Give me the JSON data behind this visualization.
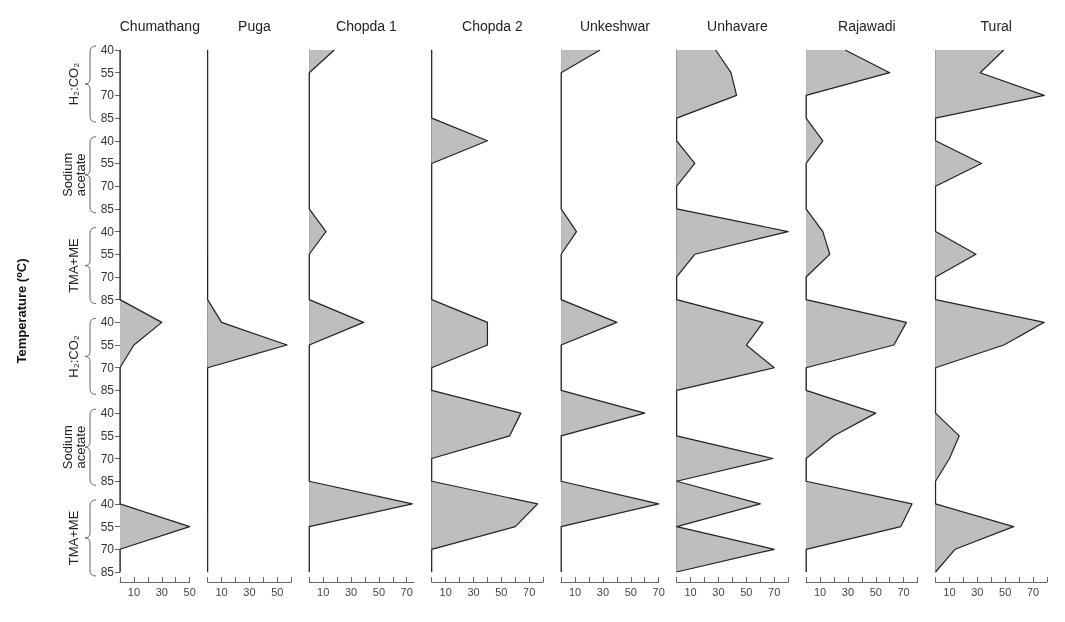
{
  "chart_data": [
    {
      "type": "area",
      "orientation": "horizontal",
      "title": "Chumathang",
      "ylabel": "Temperature (⁰C)",
      "annotations": [
        "H₂:CO₂",
        "Sodium acetate",
        "TMA+ME",
        "H₂:CO₂",
        "Sodium acetate",
        "TMA+ME"
      ],
      "categories": [
        "40",
        "55",
        "70",
        "85",
        "40",
        "55",
        "70",
        "85",
        "40",
        "55",
        "70",
        "85",
        "40",
        "55",
        "70",
        "85",
        "40",
        "55",
        "70",
        "85",
        "40",
        "55",
        "70",
        "85"
      ],
      "color": "#bebebe",
      "xlim": [
        0,
        50
      ],
      "xticks": [
        {
          "value": 0,
          "label": null
        },
        10,
        {
          "value": 20,
          "label": null
        },
        30,
        {
          "value": 40,
          "label": null
        },
        50
      ],
      "values": [
        0,
        0,
        0,
        0,
        0,
        0,
        0,
        0,
        0,
        0,
        0,
        0,
        30,
        10,
        0,
        0,
        0,
        0,
        0,
        0,
        0,
        50,
        0,
        0
      ]
    },
    {
      "type": "area",
      "orientation": "horizontal",
      "title": "Puga",
      "tick_labels": "x",
      "categories": [
        "40",
        "55",
        "70",
        "85",
        "40",
        "55",
        "70",
        "85",
        "40",
        "55",
        "70",
        "85",
        "40",
        "55",
        "70",
        "85",
        "40",
        "55",
        "70",
        "85",
        "40",
        "55",
        "70",
        "85"
      ],
      "color": "#bebebe",
      "xlim": [
        0,
        60
      ],
      "xticks": [
        {
          "value": 0,
          "label": null
        },
        10,
        {
          "value": 20,
          "label": null
        },
        30,
        {
          "value": 40,
          "label": null
        },
        50,
        {
          "value": 60,
          "label": null
        }
      ],
      "values": [
        0,
        0,
        0,
        0,
        0,
        0,
        0,
        0,
        0,
        0,
        0,
        0,
        10,
        57,
        0,
        0,
        0,
        0,
        0,
        0,
        0,
        0,
        0,
        0
      ]
    },
    {
      "type": "area",
      "orientation": "horizontal",
      "title": "Chopda 1",
      "tick_labels": "x",
      "categories": [
        "40",
        "55",
        "70",
        "85",
        "40",
        "55",
        "70",
        "85",
        "40",
        "55",
        "70",
        "85",
        "40",
        "55",
        "70",
        "85",
        "40",
        "55",
        "70",
        "85",
        "40",
        "55",
        "70",
        "85"
      ],
      "color": "#bebebe",
      "xlim": [
        0,
        75
      ],
      "xticks": [
        {
          "value": 0,
          "label": null
        },
        10,
        {
          "value": 20,
          "label": null
        },
        30,
        {
          "value": 40,
          "label": null
        },
        50,
        {
          "value": 60,
          "label": null
        },
        70
      ],
      "values": [
        18,
        0,
        0,
        0,
        0,
        0,
        0,
        0,
        12,
        0,
        0,
        0,
        39,
        0,
        0,
        0,
        0,
        0,
        0,
        0,
        74,
        0,
        0,
        0
      ]
    },
    {
      "type": "area",
      "orientation": "horizontal",
      "title": "Chopda 2",
      "tick_labels": "x",
      "categories": [
        "40",
        "55",
        "70",
        "85",
        "40",
        "55",
        "70",
        "85",
        "40",
        "55",
        "70",
        "85",
        "40",
        "55",
        "70",
        "85",
        "40",
        "55",
        "70",
        "85",
        "40",
        "55",
        "70",
        "85"
      ],
      "color": "#bebebe",
      "xlim": [
        0,
        80
      ],
      "xticks": [
        {
          "value": 0,
          "label": null
        },
        10,
        {
          "value": 20,
          "label": null
        },
        30,
        {
          "value": 40,
          "label": null
        },
        50,
        {
          "value": 60,
          "label": null
        },
        70,
        {
          "value": 80,
          "label": null
        }
      ],
      "values": [
        0,
        0,
        0,
        0,
        40,
        0,
        0,
        0,
        0,
        0,
        0,
        0,
        40,
        40,
        0,
        0,
        64,
        56,
        0,
        0,
        76,
        60,
        0,
        0
      ]
    },
    {
      "type": "area",
      "orientation": "horizontal",
      "title": "Unkeshwar",
      "tick_labels": "x",
      "categories": [
        "40",
        "55",
        "70",
        "85",
        "40",
        "55",
        "70",
        "85",
        "40",
        "55",
        "70",
        "85",
        "40",
        "55",
        "70",
        "85",
        "40",
        "55",
        "70",
        "85",
        "40",
        "55",
        "70",
        "85"
      ],
      "color": "#bebebe",
      "xlim": [
        0,
        70
      ],
      "xticks": [
        {
          "value": 0,
          "label": null
        },
        10,
        {
          "value": 20,
          "label": null
        },
        30,
        {
          "value": 40,
          "label": null
        },
        50,
        {
          "value": 60,
          "label": null
        },
        70
      ],
      "values": [
        28,
        0,
        0,
        0,
        0,
        0,
        0,
        0,
        11,
        0,
        0,
        0,
        40,
        0,
        0,
        0,
        60,
        0,
        0,
        0,
        70,
        0,
        0,
        0
      ]
    },
    {
      "type": "area",
      "orientation": "horizontal",
      "title": "Unhavare",
      "tick_labels": "x",
      "categories": [
        "40",
        "55",
        "70",
        "85",
        "40",
        "55",
        "70",
        "85",
        "40",
        "55",
        "70",
        "85",
        "40",
        "55",
        "70",
        "85",
        "40",
        "55",
        "70",
        "85",
        "40",
        "55",
        "70",
        "85"
      ],
      "color": "#bebebe",
      "xlim": [
        0,
        80
      ],
      "xticks": [
        {
          "value": 0,
          "label": null
        },
        10,
        {
          "value": 20,
          "label": null
        },
        30,
        {
          "value": 40,
          "label": null
        },
        50,
        {
          "value": 60,
          "label": null
        },
        70,
        {
          "value": 80,
          "label": null
        }
      ],
      "values": [
        28,
        39,
        43,
        0,
        0,
        13,
        0,
        0,
        80,
        13,
        0,
        0,
        62,
        50,
        70,
        0,
        0,
        0,
        69,
        0,
        60,
        0,
        70,
        0
      ]
    },
    {
      "type": "area",
      "orientation": "horizontal",
      "title": "Rajawadi",
      "tick_labels": "x",
      "categories": [
        "40",
        "55",
        "70",
        "85",
        "40",
        "55",
        "70",
        "85",
        "40",
        "55",
        "70",
        "85",
        "40",
        "55",
        "70",
        "85",
        "40",
        "55",
        "70",
        "85",
        "40",
        "55",
        "70",
        "85"
      ],
      "color": "#bebebe",
      "xlim": [
        0,
        80
      ],
      "xticks": [
        {
          "value": 0,
          "label": null
        },
        10,
        {
          "value": 20,
          "label": null
        },
        30,
        {
          "value": 40,
          "label": null
        },
        50,
        {
          "value": 60,
          "label": null
        },
        70,
        {
          "value": 80,
          "label": null
        }
      ],
      "values": [
        28,
        60,
        0,
        0,
        12,
        0,
        0,
        0,
        12,
        17,
        0,
        0,
        72,
        63,
        0,
        0,
        50,
        20,
        0,
        0,
        76,
        68,
        0,
        0
      ]
    },
    {
      "type": "area",
      "orientation": "horizontal",
      "title": "Tural",
      "tick_labels": "x",
      "categories": [
        "40",
        "55",
        "70",
        "85",
        "40",
        "55",
        "70",
        "85",
        "40",
        "55",
        "70",
        "85",
        "40",
        "55",
        "70",
        "85",
        "40",
        "55",
        "70",
        "85",
        "40",
        "55",
        "70",
        "85"
      ],
      "color": "#bebebe",
      "xlim": [
        0,
        80
      ],
      "xticks": [
        {
          "value": 0,
          "label": null
        },
        10,
        {
          "value": 20,
          "label": null
        },
        30,
        {
          "value": 40,
          "label": null
        },
        50,
        {
          "value": 60,
          "label": null
        },
        70,
        {
          "value": 80,
          "label": null
        }
      ],
      "values": [
        49,
        32,
        78,
        0,
        0,
        33,
        0,
        0,
        0,
        29,
        0,
        0,
        78,
        49,
        0,
        0,
        0,
        17,
        10,
        0,
        0,
        56,
        14,
        0
      ]
    }
  ]
}
